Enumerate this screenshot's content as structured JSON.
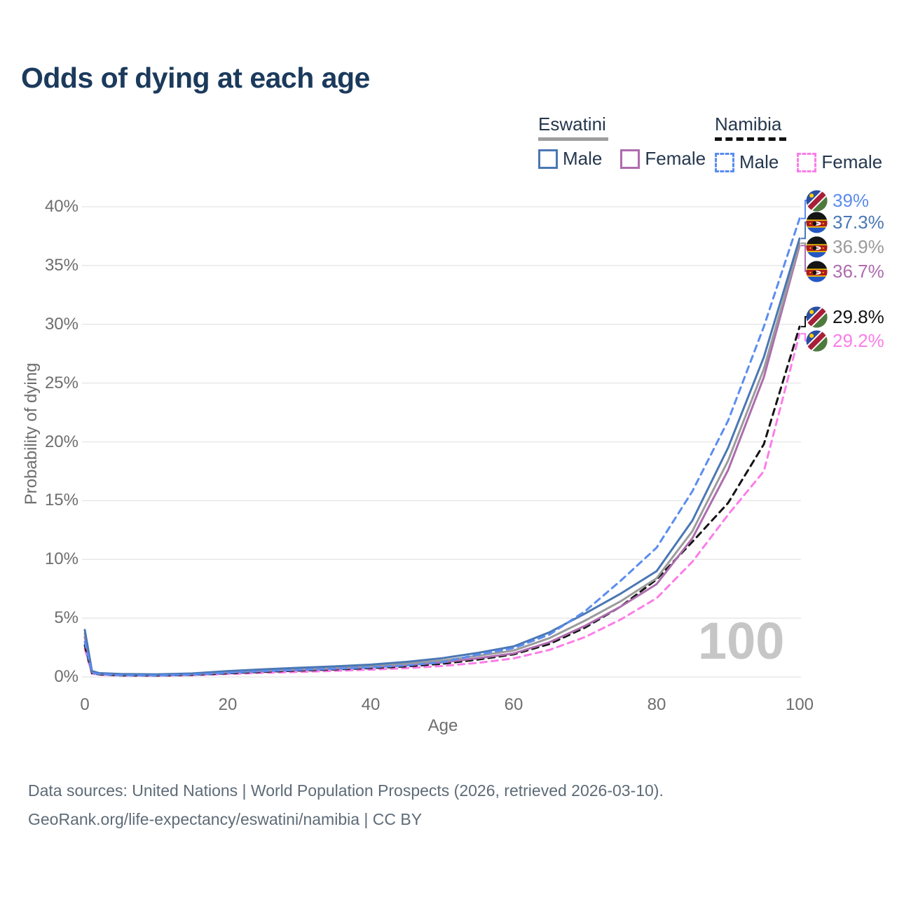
{
  "title": "Odds of dying at each age",
  "legend": {
    "groups": [
      {
        "name": "Eswatini",
        "style": "solid",
        "items": [
          {
            "label": "Male",
            "color": "#4a77b4"
          },
          {
            "label": "Female",
            "color": "#ad6cae"
          }
        ]
      },
      {
        "name": "Namibia",
        "style": "dashed",
        "items": [
          {
            "label": "Male",
            "color": "#5b8cf0"
          },
          {
            "label": "Female",
            "color": "#fb7de8"
          }
        ]
      }
    ]
  },
  "watermark": "100",
  "footer": {
    "line1": "Data sources: United Nations | World Population Prospects (2026, retrieved 2026-03-10).",
    "line2": "GeoRank.org/life-expectancy/eswatini/namibia | CC BY"
  },
  "chart_data": {
    "type": "line",
    "title": "Odds of dying at each age",
    "xlabel": "Age",
    "ylabel": "Probability of dying",
    "xlim": [
      0,
      100
    ],
    "ylim": [
      0,
      40
    ],
    "grid": "horizontal-only",
    "legend_position": "top-right",
    "ytick_values": [
      0,
      5,
      10,
      15,
      20,
      25,
      30,
      35,
      40
    ],
    "ytick_labels": [
      "0%",
      "5%",
      "10%",
      "15%",
      "20%",
      "25%",
      "30%",
      "35%",
      "40%"
    ],
    "xtick_values": [
      0,
      20,
      40,
      60,
      80,
      100
    ],
    "xtick_labels": [
      "0",
      "20",
      "40",
      "60",
      "80",
      "100"
    ],
    "x": [
      0,
      1,
      2,
      5,
      10,
      15,
      20,
      25,
      30,
      35,
      40,
      45,
      50,
      55,
      60,
      65,
      70,
      75,
      80,
      85,
      90,
      95,
      100
    ],
    "units": "percent",
    "series": [
      {
        "id": "namibia-male",
        "country": "Namibia",
        "sex": "Male",
        "color": "#5b8cf0",
        "dash": true,
        "flag": "namibia",
        "end_label": "39%",
        "end_value": 39.0,
        "values": [
          3.0,
          0.35,
          0.25,
          0.15,
          0.13,
          0.2,
          0.35,
          0.5,
          0.6,
          0.7,
          0.82,
          0.98,
          1.25,
          1.9,
          2.45,
          3.6,
          5.6,
          8.2,
          11.0,
          15.8,
          21.8,
          29.8,
          39.0
        ]
      },
      {
        "id": "eswatini-male",
        "country": "Eswatini",
        "sex": "Male",
        "color": "#4a77b4",
        "dash": false,
        "flag": "eswatini",
        "end_label": "37.3%",
        "end_value": 37.3,
        "values": [
          4.0,
          0.5,
          0.33,
          0.25,
          0.22,
          0.3,
          0.5,
          0.65,
          0.78,
          0.9,
          1.05,
          1.28,
          1.6,
          2.05,
          2.6,
          3.8,
          5.4,
          7.1,
          9.0,
          13.3,
          19.5,
          27.2,
          37.3
        ]
      },
      {
        "id": "eswatini-both",
        "country": "Eswatini",
        "sex": "Both",
        "color": "#9b9b9b",
        "dash": false,
        "flag": "eswatini",
        "end_label": "36.9%",
        "end_value": 36.9,
        "values": [
          3.7,
          0.46,
          0.3,
          0.23,
          0.2,
          0.27,
          0.44,
          0.57,
          0.68,
          0.79,
          0.93,
          1.12,
          1.4,
          1.8,
          2.25,
          3.3,
          4.8,
          6.45,
          8.4,
          12.4,
          18.4,
          26.2,
          36.9
        ]
      },
      {
        "id": "eswatini-female",
        "country": "Eswatini",
        "sex": "Female",
        "color": "#ad6cae",
        "dash": false,
        "flag": "eswatini",
        "end_label": "36.7%",
        "end_value": 36.7,
        "values": [
          3.4,
          0.42,
          0.28,
          0.21,
          0.18,
          0.24,
          0.38,
          0.5,
          0.6,
          0.7,
          0.83,
          1.0,
          1.24,
          1.6,
          2.0,
          2.95,
          4.35,
          6.0,
          7.9,
          11.8,
          17.6,
          25.5,
          36.7
        ]
      },
      {
        "id": "namibia-both",
        "country": "Namibia",
        "sex": "Both",
        "color": "#141414",
        "dash": true,
        "flag": "namibia",
        "end_label": "29.8%",
        "end_value": 29.8,
        "values": [
          2.7,
          0.32,
          0.22,
          0.14,
          0.12,
          0.18,
          0.31,
          0.44,
          0.54,
          0.64,
          0.75,
          0.9,
          1.12,
          1.48,
          1.92,
          2.8,
          4.2,
          6.0,
          8.3,
          11.5,
          14.8,
          19.8,
          29.8
        ]
      },
      {
        "id": "namibia-female",
        "country": "Namibia",
        "sex": "Female",
        "color": "#fb7de8",
        "dash": true,
        "flag": "namibia",
        "end_label": "29.2%",
        "end_value": 29.2,
        "values": [
          2.4,
          0.28,
          0.19,
          0.12,
          0.1,
          0.15,
          0.25,
          0.35,
          0.43,
          0.52,
          0.62,
          0.75,
          0.93,
          1.2,
          1.58,
          2.3,
          3.4,
          4.9,
          6.7,
          9.8,
          13.8,
          17.5,
          29.2
        ]
      }
    ]
  }
}
